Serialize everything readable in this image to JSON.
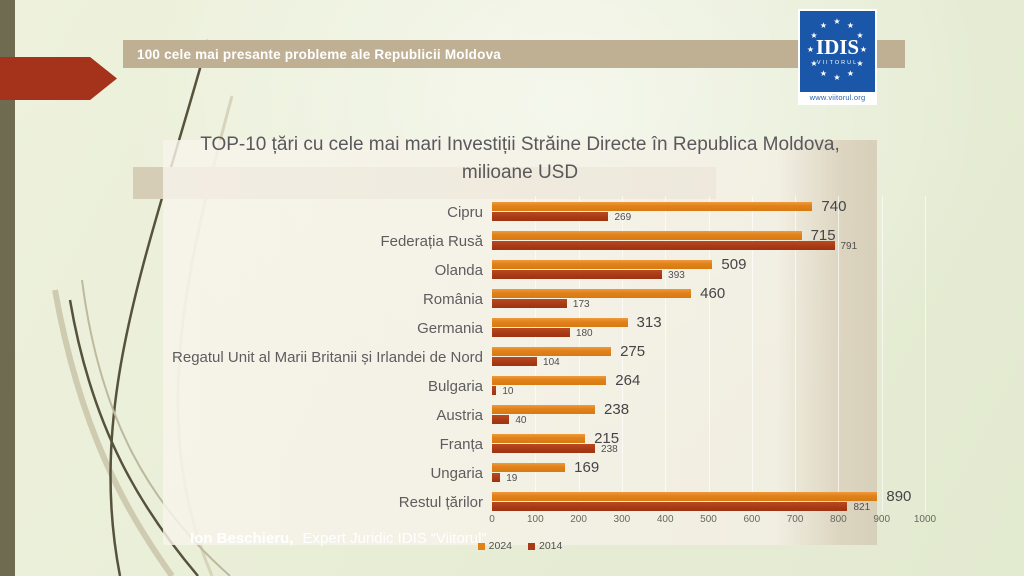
{
  "slide": {
    "header": {
      "title": "100 cele mai presante probleme ale Republicii Moldova"
    },
    "logo": {
      "org": "IDIS",
      "suborg": "VIITORUL",
      "url": "www.viitorul.org"
    },
    "footer": {
      "author": "Ion Beschieru,",
      "role": "Expert Juridic IDIS “Viitorul”"
    },
    "colors": {
      "accent_arrow": "#a5331b",
      "header_band": "#c0b093",
      "logo_blue": "#1b57a8",
      "series_2024": "#e08119",
      "series_2014": "#a93a17"
    }
  },
  "chart_data": {
    "type": "bar",
    "orientation": "horizontal",
    "title": "TOP-10 țări cu cele mai mari Investiții Străine Directe în Republica Moldova, milioane USD",
    "categories": [
      "Cipru",
      "Federația Rusă",
      "Olanda",
      "România",
      "Germania",
      "Regatul Unit al Marii Britanii și Irlandei de Nord",
      "Bulgaria",
      "Austria",
      "Franța",
      "Ungaria",
      "Restul țărilor"
    ],
    "series": [
      {
        "name": "2024",
        "color": "#e08119",
        "values": [
          740,
          715,
          509,
          460,
          313,
          275,
          264,
          238,
          215,
          169,
          890
        ]
      },
      {
        "name": "2014",
        "color": "#a93a17",
        "values": [
          269,
          791,
          393,
          173,
          180,
          104,
          10,
          40,
          238,
          19,
          821
        ]
      }
    ],
    "xlabel": "",
    "ylabel": "",
    "xlim": [
      0,
      1000
    ],
    "xticks": [
      0,
      100,
      200,
      300,
      400,
      500,
      600,
      700,
      800,
      900,
      1000
    ],
    "grid": true,
    "legend_position": "bottom"
  }
}
